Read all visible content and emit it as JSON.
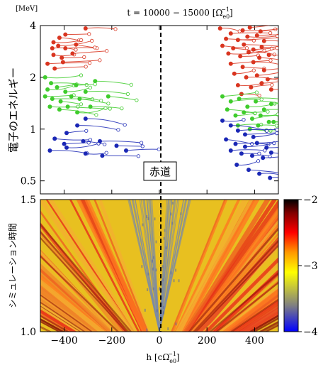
{
  "chart_data": [
    {
      "type": "scatter",
      "panel": "top",
      "title": "t = 10000 − 15000 [Ω",
      "title_sub": "e0",
      "title_sup": "−1",
      "title_end": "]",
      "unit_label": "[MeV]",
      "ylabel": "電子のエネルギー",
      "equator_label": "赤道",
      "yscale": "log",
      "ylim": [
        0.42,
        4
      ],
      "xlim": [
        -500,
        500
      ],
      "ytick_labels": [
        "4",
        "2",
        "1",
        "0.5"
      ],
      "ytick_values": [
        4,
        2,
        1,
        0.5
      ],
      "colors": {
        "high": "#d93520",
        "mid": "#3fcc2c",
        "low": "#1a27b5"
      },
      "groups": [
        {
          "color": "high",
          "left": [
            [
              -310,
              3.85
            ],
            [
              -395,
              3.55
            ],
            [
              -420,
              3.4
            ],
            [
              -445,
              3.2
            ],
            [
              -425,
              3.05
            ],
            [
              -450,
              2.95
            ],
            [
              -395,
              2.95
            ],
            [
              -350,
              3.1
            ],
            [
              -445,
              2.7
            ],
            [
              -410,
              2.6
            ],
            [
              -365,
              2.75
            ],
            [
              -470,
              2.4
            ],
            [
              -440,
              2.25
            ],
            [
              -405,
              2.45
            ]
          ],
          "right": [
            [
              255,
              3.85
            ],
            [
              300,
              3.6
            ],
            [
              350,
              3.75
            ],
            [
              380,
              3.9
            ],
            [
              425,
              3.7
            ],
            [
              280,
              3.35
            ],
            [
              330,
              3.3
            ],
            [
              370,
              3.45
            ],
            [
              410,
              3.5
            ],
            [
              440,
              3.25
            ],
            [
              265,
              3.05
            ],
            [
              310,
              2.95
            ],
            [
              355,
              3.1
            ],
            [
              395,
              2.9
            ],
            [
              430,
              3.0
            ],
            [
              290,
              2.75
            ],
            [
              340,
              2.65
            ],
            [
              375,
              2.8
            ],
            [
              420,
              2.6
            ],
            [
              460,
              2.7
            ],
            [
              300,
              2.4
            ],
            [
              350,
              2.3
            ],
            [
              395,
              2.45
            ],
            [
              440,
              2.2
            ],
            [
              315,
              2.1
            ],
            [
              365,
              2.0
            ],
            [
              410,
              2.05
            ],
            [
              455,
              1.95
            ],
            [
              330,
              1.8
            ],
            [
              385,
              1.75
            ],
            [
              430,
              1.85
            ],
            [
              470,
              1.7
            ],
            [
              345,
              1.6
            ]
          ]
        },
        {
          "color": "mid",
          "left": [
            [
              -480,
              2.0
            ],
            [
              -455,
              1.85
            ],
            [
              -470,
              1.7
            ],
            [
              -430,
              1.75
            ],
            [
              -395,
              1.65
            ],
            [
              -480,
              1.55
            ],
            [
              -450,
              1.5
            ],
            [
              -415,
              1.45
            ],
            [
              -370,
              1.55
            ],
            [
              -335,
              1.5
            ],
            [
              -460,
              1.35
            ],
            [
              -420,
              1.3
            ],
            [
              -385,
              1.35
            ],
            [
              -345,
              1.25
            ],
            [
              -290,
              1.35
            ],
            [
              -270,
              1.9
            ],
            [
              -215,
              1.55
            ],
            [
              -350,
              1.8
            ],
            [
              -310,
              1.65
            ]
          ],
          "right": [
            [
              265,
              1.55
            ],
            [
              300,
              1.45
            ],
            [
              335,
              1.5
            ],
            [
              370,
              1.35
            ],
            [
              405,
              1.45
            ],
            [
              440,
              1.3
            ],
            [
              470,
              1.4
            ],
            [
              285,
              1.3
            ],
            [
              320,
              1.2
            ],
            [
              355,
              1.25
            ],
            [
              390,
              1.15
            ],
            [
              425,
              1.2
            ],
            [
              460,
              1.1
            ],
            [
              330,
              1.05
            ],
            [
              380,
              1.0
            ],
            [
              415,
              1.05
            ],
            [
              450,
              0.98
            ],
            [
              480,
              1.1
            ]
          ]
        },
        {
          "color": "low",
          "left": [
            [
              -310,
              1.15
            ],
            [
              -345,
              1.05
            ],
            [
              -390,
              0.95
            ],
            [
              -440,
              0.88
            ],
            [
              -400,
              0.82
            ],
            [
              -320,
              0.85
            ],
            [
              -460,
              0.75
            ],
            [
              -390,
              0.78
            ],
            [
              -250,
              0.85
            ],
            [
              -180,
              0.8
            ],
            [
              -310,
              0.72
            ],
            [
              -240,
              0.7
            ],
            [
              -140,
              0.75
            ]
          ],
          "right": [
            [
              265,
              1.12
            ],
            [
              300,
              1.05
            ],
            [
              330,
              0.98
            ],
            [
              360,
              0.93
            ],
            [
              395,
              0.9
            ],
            [
              280,
              0.87
            ],
            [
              320,
              0.82
            ],
            [
              360,
              0.79
            ],
            [
              410,
              0.83
            ],
            [
              450,
              0.78
            ],
            [
              300,
              0.75
            ],
            [
              345,
              0.72
            ],
            [
              390,
              0.7
            ],
            [
              435,
              0.68
            ],
            [
              470,
              0.73
            ],
            [
              325,
              0.62
            ],
            [
              375,
              0.58
            ],
            [
              420,
              0.55
            ],
            [
              465,
              0.52
            ]
          ]
        }
      ]
    },
    {
      "type": "heatmap",
      "panel": "bottom",
      "ylabel": "シミュレーション時間",
      "xlabel": "h [cΩ",
      "xlabel_sub": "e0",
      "xlabel_sup": "−1",
      "xlabel_end": "]",
      "xlim": [
        -500,
        500
      ],
      "ylim": [
        1.0,
        1.5
      ],
      "xtick_labels": [
        "−400",
        "−200",
        "0",
        "200",
        "400"
      ],
      "xtick_values": [
        -400,
        -200,
        0,
        200,
        400
      ],
      "ytick_labels": [
        "1.5",
        "1.0"
      ],
      "ytick_values": [
        1.5,
        1.0
      ],
      "colorbar": {
        "range": [
          -4,
          -2
        ],
        "tick_labels": [
          "−2",
          "−3",
          "−4"
        ],
        "tick_values": [
          -2,
          -3,
          -4
        ],
        "colors": [
          "#0000ff",
          "#808080",
          "#ffff00",
          "#ff9900",
          "#ff0000",
          "#800000",
          "#000000"
        ]
      }
    }
  ]
}
